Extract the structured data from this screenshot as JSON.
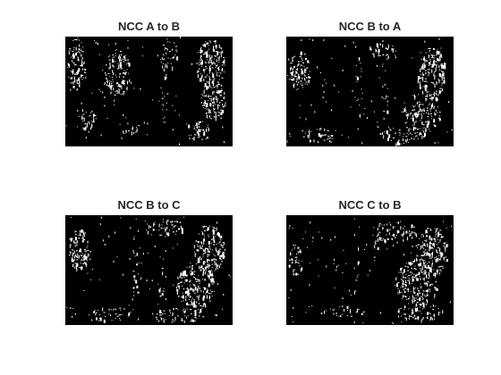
{
  "figure": {
    "background_color": "#ffffff",
    "image_background_color": "#000000",
    "pixel_color": "#ffffff",
    "panels": [
      {
        "title": "NCC A to B"
      },
      {
        "title": "NCC B to A"
      },
      {
        "title": "NCC B to C"
      },
      {
        "title": "NCC C to B"
      }
    ]
  }
}
